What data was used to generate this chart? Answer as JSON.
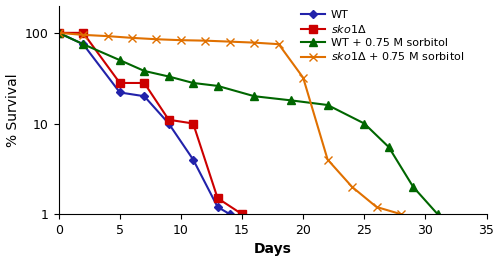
{
  "series": [
    {
      "label": "WT",
      "color": "#2222aa",
      "marker": "D",
      "markersize": 4.5,
      "linewidth": 1.5,
      "x": [
        0,
        2,
        5,
        7,
        9,
        11,
        13,
        14
      ],
      "y": [
        100,
        75,
        22,
        20,
        10,
        4,
        1.2,
        1
      ]
    },
    {
      "label": "sko1Δ",
      "color": "#cc0000",
      "marker": "s",
      "markersize": 5.5,
      "linewidth": 1.5,
      "x": [
        0,
        2,
        5,
        7,
        9,
        11,
        13,
        15
      ],
      "y": [
        100,
        100,
        28,
        28,
        11,
        10,
        1.5,
        1
      ]
    },
    {
      "label": "WT + 0.75 M sorbitol",
      "color": "#006600",
      "marker": "^",
      "markersize": 5.5,
      "linewidth": 1.5,
      "x": [
        0,
        2,
        5,
        7,
        9,
        11,
        13,
        16,
        19,
        22,
        25,
        27,
        29,
        31
      ],
      "y": [
        100,
        75,
        50,
        38,
        33,
        28,
        26,
        20,
        18,
        16,
        10,
        5.5,
        2,
        1
      ]
    },
    {
      "label": "sko1Δ + 0.75 M sorbitol",
      "color": "#e07000",
      "marker": "x",
      "markersize": 6,
      "linewidth": 1.5,
      "x": [
        0,
        2,
        4,
        6,
        8,
        10,
        12,
        14,
        16,
        18,
        20,
        22,
        24,
        26,
        28
      ],
      "y": [
        100,
        95,
        92,
        88,
        85,
        83,
        82,
        80,
        78,
        75,
        32,
        4,
        2,
        1.2,
        1
      ]
    }
  ],
  "ylabel": "% Survival",
  "xlabel": "Days",
  "xlim": [
    0,
    35
  ],
  "ylim": [
    1,
    200
  ],
  "xticks": [
    0,
    5,
    10,
    15,
    20,
    25,
    30,
    35
  ],
  "yticks": [
    1,
    10,
    100
  ],
  "yticklabels": [
    "1",
    "10",
    "100"
  ],
  "legend_fontsize": 8,
  "axis_label_fontsize": 10,
  "tick_fontsize": 9
}
